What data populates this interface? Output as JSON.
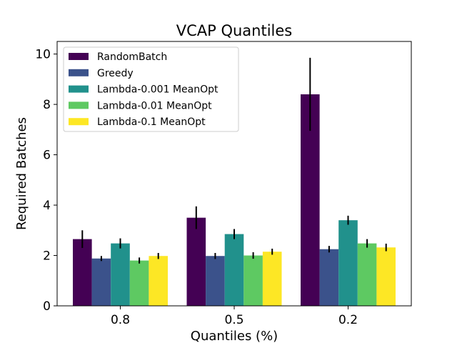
{
  "chart_data": {
    "type": "bar",
    "title": "VCAP Quantiles",
    "xlabel": "Quantiles (%)",
    "ylabel": "Required Batches",
    "ylim": [
      0,
      10.5
    ],
    "yticks": [
      0,
      2,
      4,
      6,
      8,
      10
    ],
    "categories": [
      "0.8",
      "0.5",
      "0.2"
    ],
    "legend_position": "top-left",
    "series": [
      {
        "name": "RandomBatch",
        "color": "#440154",
        "values": [
          2.65,
          3.5,
          8.4
        ],
        "errors": [
          0.35,
          0.45,
          1.45
        ]
      },
      {
        "name": "Greedy",
        "color": "#3b528b",
        "values": [
          1.88,
          1.98,
          2.25
        ],
        "errors": [
          0.1,
          0.12,
          0.13
        ]
      },
      {
        "name": "Lambda-0.001 MeanOpt",
        "color": "#21918c",
        "values": [
          2.48,
          2.85,
          3.4
        ],
        "errors": [
          0.2,
          0.2,
          0.18
        ]
      },
      {
        "name": "Lambda-0.01 MeanOpt",
        "color": "#5ec962",
        "values": [
          1.8,
          2.0,
          2.48
        ],
        "errors": [
          0.12,
          0.13,
          0.17
        ]
      },
      {
        "name": "Lambda-0.1 MeanOpt",
        "color": "#fde725",
        "values": [
          1.98,
          2.15,
          2.32
        ],
        "errors": [
          0.12,
          0.12,
          0.15
        ]
      }
    ]
  }
}
